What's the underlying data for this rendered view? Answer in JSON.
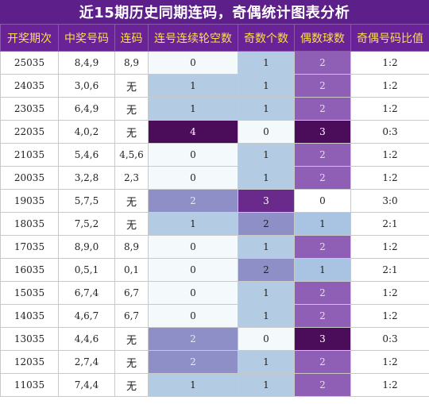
{
  "title": "近15期历史同期连码，奇偶统计图表分析",
  "headers": [
    "开奖期次",
    "中奖号码",
    "连码",
    "连号连续轮空数",
    "奇数个数",
    "偶数球数",
    "奇偶号码比值"
  ],
  "colors": {
    "title_bg": "#5d1f8a",
    "header_bg": "#6a2396",
    "header_text": "#f7e04a",
    "level": {
      "0": "#f4f9fb",
      "1": "#b4cbe4",
      "2": "#8e8fc6",
      "3": "#6a2a8c",
      "4": "#4b0d5a"
    },
    "even": {
      "1": "#a8c4e2",
      "2": "#8f5fb5",
      "3": "#4b0d5a"
    }
  },
  "rows": [
    {
      "period": "25035",
      "numbers": "8,4,9",
      "lianma": "8,9",
      "gap": "0",
      "odd": "1",
      "even": "2",
      "ratio": "1:2"
    },
    {
      "period": "24035",
      "numbers": "3,0,6",
      "lianma": "无",
      "gap": "1",
      "odd": "1",
      "even": "2",
      "ratio": "1:2"
    },
    {
      "period": "23035",
      "numbers": "6,4,9",
      "lianma": "无",
      "gap": "1",
      "odd": "1",
      "even": "2",
      "ratio": "1:2"
    },
    {
      "period": "22035",
      "numbers": "4,0,2",
      "lianma": "无",
      "gap": "4",
      "odd": "0",
      "even": "3",
      "ratio": "0:3"
    },
    {
      "period": "21035",
      "numbers": "5,4,6",
      "lianma": "4,5,6",
      "gap": "0",
      "odd": "1",
      "even": "2",
      "ratio": "1:2"
    },
    {
      "period": "20035",
      "numbers": "3,2,8",
      "lianma": "2,3",
      "gap": "0",
      "odd": "1",
      "even": "2",
      "ratio": "1:2"
    },
    {
      "period": "19035",
      "numbers": "5,7,5",
      "lianma": "无",
      "gap": "2",
      "odd": "3",
      "even": "0",
      "ratio": "3:0"
    },
    {
      "period": "18035",
      "numbers": "7,5,2",
      "lianma": "无",
      "gap": "1",
      "odd": "2",
      "even": "1",
      "ratio": "2:1"
    },
    {
      "period": "17035",
      "numbers": "8,9,0",
      "lianma": "8,9",
      "gap": "0",
      "odd": "1",
      "even": "2",
      "ratio": "1:2"
    },
    {
      "period": "16035",
      "numbers": "0,5,1",
      "lianma": "0,1",
      "gap": "0",
      "odd": "2",
      "even": "1",
      "ratio": "2:1"
    },
    {
      "period": "15035",
      "numbers": "6,7,4",
      "lianma": "6,7",
      "gap": "0",
      "odd": "1",
      "even": "2",
      "ratio": "1:2"
    },
    {
      "period": "14035",
      "numbers": "4,6,7",
      "lianma": "6,7",
      "gap": "0",
      "odd": "1",
      "even": "2",
      "ratio": "1:2"
    },
    {
      "period": "13035",
      "numbers": "4,4,6",
      "lianma": "无",
      "gap": "2",
      "odd": "0",
      "even": "3",
      "ratio": "0:3"
    },
    {
      "period": "12035",
      "numbers": "2,7,4",
      "lianma": "无",
      "gap": "2",
      "odd": "1",
      "even": "2",
      "ratio": "1:2"
    },
    {
      "period": "11035",
      "numbers": "7,4,4",
      "lianma": "无",
      "gap": "1",
      "odd": "1",
      "even": "2",
      "ratio": "1:2"
    }
  ]
}
